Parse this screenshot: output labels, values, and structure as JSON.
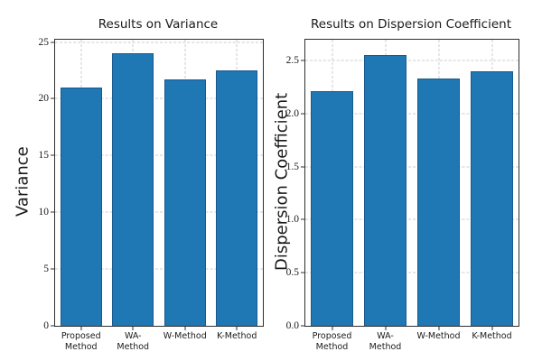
{
  "figure": {
    "background": "#ffffff",
    "bar_fill_color": "#1f77b4",
    "bar_edge_color": "#185a8d",
    "grid_color": "#cccccc",
    "spine_color": "#2f2f2f",
    "text_color": "#1a1a1a"
  },
  "chart_data": [
    {
      "type": "bar",
      "title": "Results on Variance",
      "ylabel": "Variance",
      "xlabel": "",
      "categories": [
        "Proposed\nMethod",
        "WA-\nMethod",
        "W-Method",
        "K-Method"
      ],
      "values": [
        21.0,
        24.0,
        21.7,
        22.5
      ],
      "yticks": [
        0,
        5,
        10,
        15,
        20,
        25
      ],
      "ytick_labels": [
        "0",
        "5",
        "10",
        "15",
        "20",
        "25"
      ],
      "ylim": [
        0,
        25.2
      ],
      "grid": "both-dashed",
      "legend": "none"
    },
    {
      "type": "bar",
      "title": "Results on Dispersion Coefficient",
      "ylabel": "Dispersion Coefficient",
      "xlabel": "",
      "categories": [
        "Proposed\nMethod",
        "WA-\nMethod",
        "W-Method",
        "K-Method"
      ],
      "values": [
        2.21,
        2.55,
        2.33,
        2.4
      ],
      "yticks": [
        0.0,
        0.5,
        1.0,
        1.5,
        2.0,
        2.5
      ],
      "ytick_labels": [
        "0.0",
        "0.5",
        "1.0",
        "1.5",
        "2.0",
        "2.5"
      ],
      "ylim": [
        0,
        2.695
      ],
      "grid": "both-dashed",
      "legend": "none"
    }
  ]
}
